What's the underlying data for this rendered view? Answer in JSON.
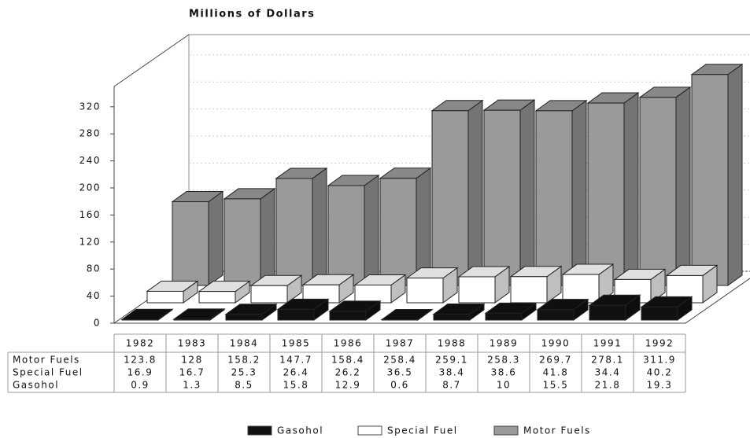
{
  "chart_data": {
    "type": "bar3d",
    "title": "Millions of Dollars",
    "categories": [
      "1982",
      "1983",
      "1984",
      "1985",
      "1986",
      "1987",
      "1988",
      "1989",
      "1990",
      "1991",
      "1992"
    ],
    "series": [
      {
        "name": "Gasohol",
        "color": "#111111",
        "values": [
          0.9,
          1.3,
          8.5,
          15.8,
          12.9,
          0.6,
          8.7,
          10,
          15.5,
          21.8,
          19.3
        ]
      },
      {
        "name": "Special Fuel",
        "color": "#ffffff",
        "values": [
          16.9,
          16.7,
          25.3,
          26.4,
          26.2,
          36.5,
          38.4,
          38.6,
          41.8,
          34.4,
          40.2
        ]
      },
      {
        "name": "Motor Fuels",
        "color": "#9a9a9a",
        "values": [
          123.8,
          128,
          158.2,
          147.7,
          158.4,
          258.4,
          259.1,
          258.3,
          269.7,
          278.1,
          311.9
        ]
      }
    ],
    "ylim": [
      0,
      350
    ],
    "yticks": [
      0,
      40,
      80,
      120,
      160,
      200,
      240,
      280,
      320
    ],
    "grid": true,
    "legend": "bottom"
  }
}
